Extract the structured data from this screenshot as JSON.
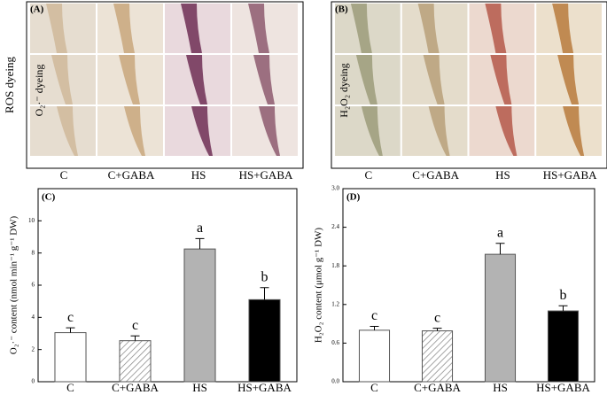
{
  "panels": [
    {
      "label": "(A)",
      "side_label": "ROS dyeing",
      "row_label": "O₂·⁻ dyeing",
      "columns": [
        "C",
        "C+GABA",
        "HS",
        "HS+GABA"
      ]
    },
    {
      "label": "(B)",
      "row_label": "H₂O₂ dyeing",
      "columns": [
        "C",
        "C+GABA",
        "HS",
        "HS+GABA"
      ]
    }
  ],
  "chart_data": [
    {
      "type": "bar",
      "title": "(C)",
      "y_label": "O₂·⁻ content (nmol min⁻¹ g⁻¹ DW)",
      "categories": [
        "C",
        "C+GABA",
        "HS",
        "HS+GABA"
      ],
      "values": [
        3.05,
        2.55,
        8.25,
        5.1
      ],
      "errors": [
        0.3,
        0.3,
        0.65,
        0.75
      ],
      "letters": [
        "c",
        "c",
        "a",
        "b"
      ],
      "fills": [
        "#ffffff",
        "hatched",
        "#b3b3b3",
        "#000000"
      ],
      "ylim": [
        0,
        12
      ],
      "yticks": [
        0,
        2,
        4,
        6,
        8,
        10
      ]
    },
    {
      "type": "bar",
      "title": "(D)",
      "y_label": "H₂O₂ content (μmol g⁻¹ DW)",
      "categories": [
        "C",
        "C+GABA",
        "HS",
        "HS+GABA"
      ],
      "values": [
        0.8,
        0.79,
        1.98,
        1.1
      ],
      "errors": [
        0.06,
        0.04,
        0.17,
        0.08
      ],
      "letters": [
        "c",
        "c",
        "a",
        "b"
      ],
      "fills": [
        "#ffffff",
        "hatched",
        "#b3b3b3",
        "#000000"
      ],
      "ylim": [
        0,
        3
      ],
      "yticks": [
        {
          "value": 0,
          "label": "0.0"
        },
        0.6,
        1.2,
        1.8,
        2.4,
        {
          "value": 3,
          "label": "3.0"
        }
      ]
    }
  ]
}
